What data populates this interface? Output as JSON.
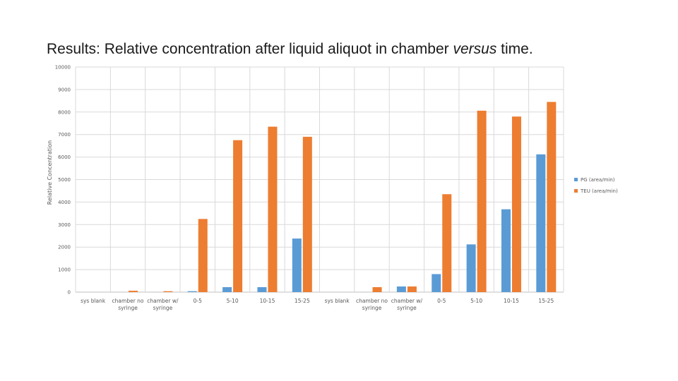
{
  "title": {
    "prefix": "Results: Relative concentration after liquid aliquot in chamber ",
    "emphasis": "versus",
    "suffix": " time."
  },
  "colors": {
    "pg": "#5b9bd5",
    "teu": "#ed7d31",
    "grid": "#d9d9d9",
    "axis": "#bfbfbf"
  },
  "chart_data": {
    "type": "bar",
    "ylabel": "Relative Concentration",
    "ylim": [
      0,
      10000
    ],
    "yticks": [
      0,
      1000,
      2000,
      3000,
      4000,
      5000,
      6000,
      7000,
      8000,
      9000,
      10000
    ],
    "grid": true,
    "legend_position": "right",
    "categories": [
      [
        "sys blank"
      ],
      [
        "chamber no",
        "syringe"
      ],
      [
        "chamber w/",
        "syringe"
      ],
      [
        "0-5"
      ],
      [
        "5-10"
      ],
      [
        "10-15"
      ],
      [
        "15-25"
      ],
      [
        "sys blank"
      ],
      [
        "chamber no",
        "syringe"
      ],
      [
        "chamber w/",
        "syringe"
      ],
      [
        "0-5"
      ],
      [
        "5-10"
      ],
      [
        "10-15"
      ],
      [
        "15-25"
      ]
    ],
    "series": [
      {
        "name": "PG (area/min)",
        "color": "#5b9bd5",
        "values": [
          0,
          0,
          0,
          40,
          220,
          220,
          2380,
          0,
          0,
          250,
          800,
          2120,
          3680,
          6120
        ]
      },
      {
        "name": "TEU (area/min)",
        "color": "#ed7d31",
        "values": [
          0,
          60,
          40,
          3250,
          6750,
          7350,
          6900,
          0,
          220,
          250,
          4350,
          8060,
          7800,
          8450
        ]
      }
    ]
  }
}
